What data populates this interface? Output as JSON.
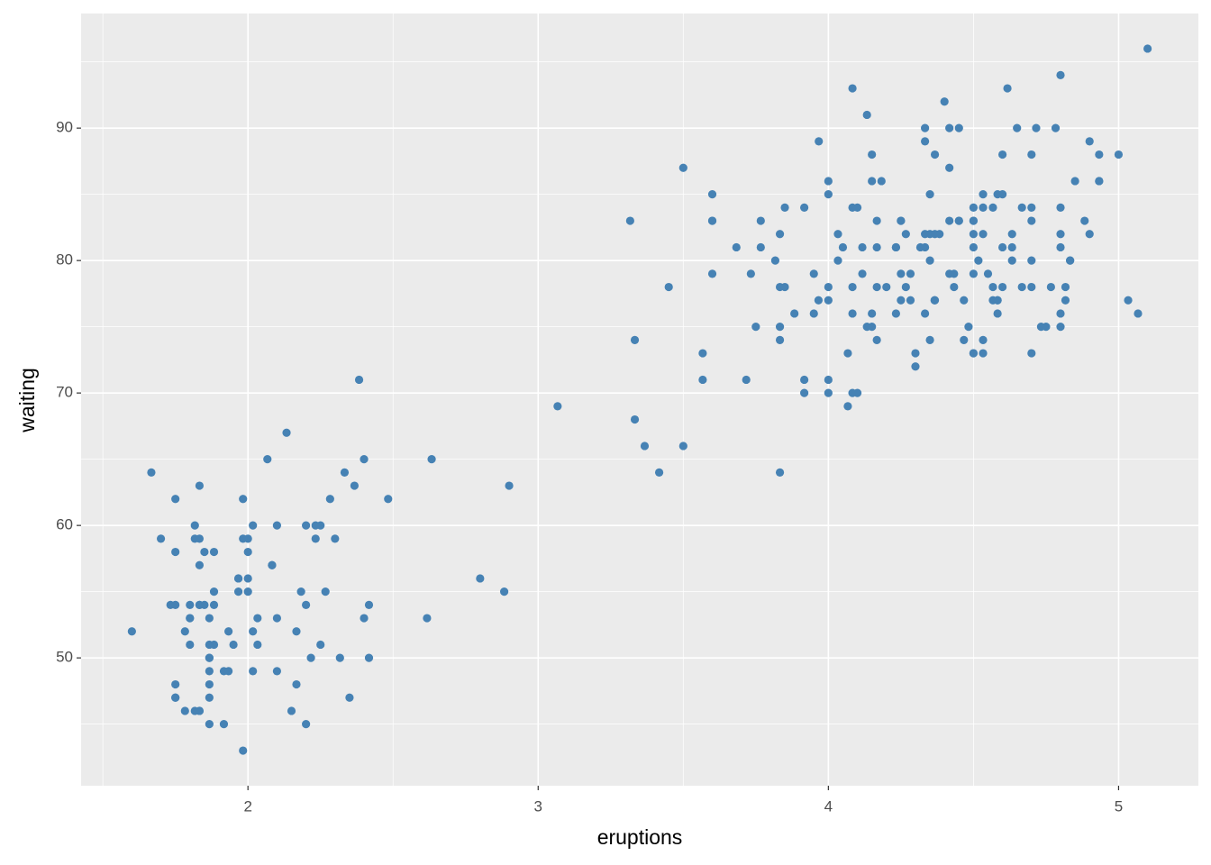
{
  "chart_data": {
    "type": "scatter",
    "xlabel": "eruptions",
    "ylabel": "waiting",
    "color": "#4682b4",
    "grid": true,
    "xlim": [
      1.425,
      5.275
    ],
    "ylim": [
      40.35,
      98.65
    ],
    "xticks": [
      2,
      3,
      4,
      5
    ],
    "yticks": [
      50,
      60,
      70,
      80,
      90
    ],
    "x_minor_grid": [
      1.5,
      2.5,
      3.5,
      4.5
    ],
    "y_minor_grid": [
      45,
      55,
      65,
      75,
      85,
      95
    ],
    "x": [
      3.6,
      1.8,
      3.333,
      2.283,
      4.533,
      2.883,
      4.7,
      3.6,
      1.95,
      4.35,
      1.833,
      3.917,
      4.2,
      1.75,
      4.7,
      2.167,
      1.75,
      4.8,
      1.6,
      4.25,
      1.8,
      1.75,
      3.45,
      3.067,
      4.533,
      3.6,
      1.967,
      4.083,
      3.85,
      4.433,
      4.3,
      4.467,
      3.367,
      4.033,
      3.833,
      2.017,
      1.867,
      4.833,
      1.833,
      4.783,
      4.35,
      1.883,
      4.567,
      1.75,
      4.533,
      3.317,
      3.833,
      2.1,
      4.633,
      2,
      4.8,
      4.716,
      1.833,
      4.833,
      1.733,
      4.883,
      3.717,
      1.667,
      4.567,
      4.317,
      2.233,
      4.5,
      1.75,
      4.8,
      1.817,
      4.4,
      4.167,
      4.7,
      2.067,
      4.7,
      4.033,
      1.967,
      4.5,
      4,
      1.983,
      5.067,
      2.017,
      4.567,
      3.883,
      3.6,
      4.133,
      4.333,
      4.1,
      2.633,
      4.067,
      4.933,
      3.95,
      4.517,
      2.167,
      4,
      2.2,
      4.333,
      1.867,
      4.817,
      1.833,
      4.3,
      4.667,
      3.75,
      1.867,
      4.9,
      2.483,
      4.367,
      2.1,
      4.5,
      4.05,
      1.867,
      4.7,
      1.783,
      4.85,
      3.683,
      4.733,
      2.3,
      4.9,
      4.417,
      1.7,
      4.633,
      2.317,
      4.6,
      1.817,
      4.417,
      2.617,
      4.067,
      4.25,
      1.967,
      4.6,
      3.767,
      1.917,
      4.5,
      2.267,
      4.65,
      1.867,
      4.167,
      2.8,
      4.333,
      1.833,
      4.383,
      1.883,
      4.933,
      2.033,
      3.733,
      4.233,
      2.233,
      4.533,
      4.817,
      4.333,
      1.983,
      4.633,
      2.017,
      5.1,
      1.8,
      5.033,
      4,
      2.4,
      4.6,
      3.567,
      4,
      4.5,
      4.083,
      1.8,
      3.967,
      2.2,
      4.15,
      2,
      3.833,
      3.5,
      4.583,
      2.367,
      5,
      1.933,
      4.617,
      1.917,
      2.083,
      4.583,
      3.333,
      4.167,
      4.333,
      4.5,
      2.417,
      4,
      4.167,
      1.883,
      4.583,
      4.25,
      3.767,
      2.033,
      4.433,
      4.083,
      1.833,
      4.417,
      2.183,
      4.8,
      1.833,
      4.8,
      4.1,
      3.966,
      4.233,
      3.5,
      4.366,
      2.25,
      4.667,
      2.1,
      4.35,
      4.133,
      1.867,
      4.6,
      1.783,
      4.367,
      3.85,
      1.933,
      4.5,
      2.383,
      4.7,
      1.867,
      3.833,
      3.417,
      4.233,
      2.4,
      4.8,
      2,
      4.15,
      1.867,
      4.267,
      1.75,
      4.483,
      4,
      4.117,
      4.083,
      4.267,
      3.917,
      4.55,
      4.083,
      2.417,
      4.183,
      2.217,
      4.45,
      1.883,
      1.85,
      4.283,
      3.95,
      2.333,
      4.15,
      2.35,
      4.933,
      2.9,
      4.583,
      3.833,
      2.083,
      4.367,
      2.133,
      4.35,
      2.2,
      4.45,
      3.567,
      4.5,
      4.15,
      3.817,
      3.917,
      4.45,
      2,
      4.283,
      4.767,
      4.533,
      1.85,
      4.25,
      1.983,
      2.25,
      4.75,
      4.117,
      2.15,
      4.417,
      1.817,
      4.467
    ],
    "values": [
      79,
      54,
      74,
      62,
      85,
      55,
      88,
      85,
      51,
      85,
      54,
      84,
      78,
      47,
      83,
      52,
      62,
      84,
      52,
      79,
      51,
      47,
      78,
      69,
      74,
      83,
      55,
      76,
      78,
      79,
      73,
      77,
      66,
      80,
      74,
      52,
      48,
      80,
      59,
      90,
      80,
      58,
      84,
      58,
      73,
      83,
      64,
      53,
      82,
      59,
      75,
      90,
      54,
      80,
      54,
      83,
      71,
      64,
      77,
      81,
      59,
      84,
      48,
      82,
      60,
      92,
      78,
      78,
      65,
      73,
      82,
      56,
      79,
      71,
      62,
      76,
      60,
      78,
      76,
      83,
      75,
      82,
      70,
      65,
      73,
      88,
      76,
      80,
      48,
      86,
      60,
      90,
      50,
      78,
      63,
      72,
      84,
      75,
      51,
      82,
      62,
      88,
      49,
      83,
      81,
      47,
      84,
      52,
      86,
      81,
      75,
      59,
      89,
      79,
      59,
      81,
      50,
      85,
      59,
      87,
      53,
      69,
      77,
      56,
      88,
      81,
      45,
      82,
      55,
      90,
      45,
      83,
      56,
      89,
      46,
      82,
      51,
      86,
      53,
      79,
      81,
      60,
      82,
      77,
      76,
      59,
      80,
      49,
      96,
      53,
      77,
      77,
      65,
      81,
      71,
      70,
      81,
      93,
      53,
      89,
      45,
      86,
      58,
      78,
      66,
      76,
      63,
      88,
      52,
      93,
      49,
      57,
      77,
      68,
      81,
      81,
      73,
      50,
      85,
      74,
      55,
      77,
      83,
      83,
      51,
      78,
      84,
      46,
      83,
      55,
      81,
      57,
      76,
      84,
      77,
      81,
      87,
      77,
      51,
      78,
      60,
      82,
      91,
      53,
      78,
      46,
      77,
      84,
      49,
      83,
      71,
      80,
      49,
      75,
      64,
      76,
      53,
      94,
      55,
      76,
      50,
      82,
      54,
      75,
      78,
      79,
      78,
      78,
      70,
      79,
      70,
      54,
      86,
      50,
      90,
      54,
      54,
      77,
      79,
      64,
      75,
      47,
      86,
      63,
      85,
      82,
      57,
      82,
      67,
      74,
      54,
      83,
      73,
      73,
      88,
      80,
      71,
      83,
      56,
      79,
      78,
      84,
      58,
      83,
      43,
      60,
      75,
      81,
      46,
      90,
      46,
      74
    ]
  }
}
